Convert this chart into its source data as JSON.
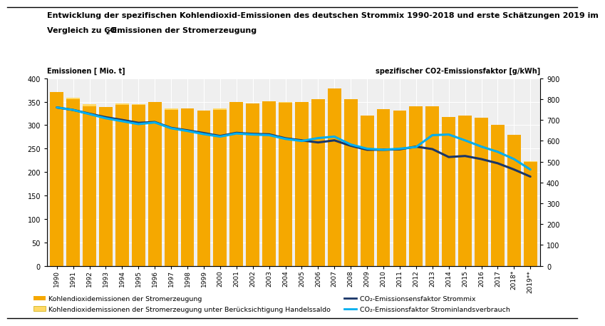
{
  "title_line1": "Entwicklung der spezifischen Kohlendioxid-Emissionen des deutschen Strommix 1990-2018 und erste Schätzungen 2019 im",
  "title_line2_pre": "Vergleich zu CO",
  "title_line2_sub": "2",
  "title_line2_post": "-Emissionen der Stromerzeugung",
  "ylabel_left": "Emissionen [ Mio. t]",
  "ylabel_right": "spezifischer CO2-Emissionsfaktor [g/kWh]",
  "years": [
    "1990",
    "1991",
    "1992",
    "1993",
    "1994",
    "1995",
    "1996",
    "1997",
    "1998",
    "1999",
    "2000",
    "2001",
    "2002",
    "2003",
    "2004",
    "2005",
    "2006",
    "2007",
    "2008",
    "2009",
    "2010",
    "2011",
    "2012",
    "2013",
    "2014",
    "2015",
    "2016",
    "2017",
    "2018*",
    "2019**"
  ],
  "bar_dark": [
    371,
    356,
    341,
    338,
    344,
    343,
    349,
    333,
    335,
    331,
    333,
    349,
    346,
    351,
    348,
    349,
    356,
    379,
    355,
    321,
    334,
    331,
    341,
    341,
    318,
    321,
    316,
    301,
    279,
    221
  ],
  "bar_light": [
    370,
    358,
    345,
    338,
    346,
    345,
    347,
    335,
    332,
    325,
    335,
    348,
    345,
    350,
    350,
    350,
    353,
    353,
    339,
    305,
    322,
    318,
    330,
    329,
    308,
    316,
    309,
    299,
    278,
    223
  ],
  "line_strommix": [
    760,
    748,
    730,
    713,
    700,
    686,
    690,
    662,
    650,
    637,
    623,
    638,
    633,
    631,
    612,
    602,
    592,
    602,
    576,
    557,
    557,
    559,
    572,
    560,
    522,
    527,
    512,
    492,
    462,
    428
  ],
  "line_inland": [
    760,
    748,
    728,
    708,
    694,
    680,
    688,
    660,
    647,
    632,
    620,
    635,
    630,
    627,
    609,
    599,
    613,
    620,
    582,
    562,
    557,
    562,
    570,
    627,
    630,
    602,
    572,
    547,
    512,
    462
  ],
  "bar_dark_color": "#F5A800",
  "bar_light_color": "#FFD966",
  "line_strommix_color": "#1A3668",
  "line_inland_color": "#00AEEF",
  "background_color": "#EFEFEF",
  "grid_color": "#FFFFFF",
  "ylim_left": [
    0,
    400
  ],
  "ylim_right": [
    0,
    900
  ],
  "yticks_left": [
    0,
    50,
    100,
    150,
    200,
    250,
    300,
    350,
    400
  ],
  "yticks_right": [
    0,
    100,
    200,
    300,
    400,
    500,
    600,
    700,
    800,
    900
  ],
  "legend_bar_dark": "Kohlendioxidemissionen der Stromerzeugung",
  "legend_bar_light": "Kohlendioxidemissionen der Stromerzeugung unter Berücksichtigung Handelssaldo",
  "legend_line_strommix": "CO₂-Emissionsensfaktor Strommix",
  "legend_line_inland": "CO₂-Emissionsfaktor Strominlandsverbrauch"
}
